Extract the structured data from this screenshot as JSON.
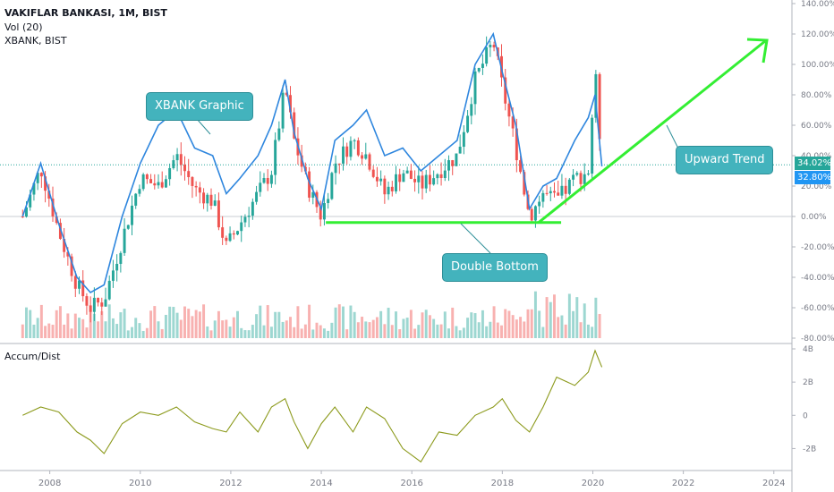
{
  "header": {
    "symbol_line": "VAKIFLAR BANKASI, 1M, BIST",
    "volume_line": "Vol (20)",
    "compare_line": "XBANK, BIST",
    "indicator_label": "Accum/Dist"
  },
  "callouts": {
    "xbank": "XBANK Graphic",
    "upward": "Upward Trend",
    "double_bottom": "Double Bottom"
  },
  "price_tags": {
    "vakbn": "34.02%",
    "xbank": "32.80%"
  },
  "colors": {
    "up": "#26a69a",
    "down": "#ef5350",
    "xbank_line": "#2e86de",
    "trend": "#33ee33",
    "ad_line": "#8c9a1c",
    "tag_green": "#26a69a",
    "tag_blue": "#2196f3",
    "callout": "#43b3bd"
  },
  "chart_data": [
    {
      "type": "candlestick+line",
      "scale": "percent",
      "ylim": [
        -80,
        140
      ],
      "yticks": [
        "140.00%",
        "120.00%",
        "100.00%",
        "80.00%",
        "60.00%",
        "40.00%",
        "20.00%",
        "0.00%",
        "-20.00%",
        "-40.00%",
        "-60.00%",
        "-80.00%"
      ],
      "ytick_values": [
        140,
        120,
        100,
        80,
        60,
        40,
        20,
        0,
        -20,
        -40,
        -60,
        -80
      ],
      "xticks": [
        "2008",
        "2010",
        "2012",
        "2014",
        "2016",
        "2018",
        "2020",
        "2022",
        "2024"
      ],
      "xtick_values": [
        2008,
        2010,
        2012,
        2014,
        2016,
        2018,
        2020,
        2022,
        2024
      ],
      "xlim": [
        2006.9,
        2024.4
      ],
      "series": [
        {
          "name": "VAKIFLAR BANKASI",
          "x": [
            2007.4,
            2007.8,
            2008.2,
            2008.6,
            2008.9,
            2009.2,
            2009.6,
            2010.0,
            2010.4,
            2010.8,
            2011.2,
            2011.6,
            2011.9,
            2012.2,
            2012.6,
            2012.9,
            2013.2,
            2013.4,
            2013.7,
            2014.0,
            2014.3,
            2014.7,
            2015.0,
            2015.4,
            2015.8,
            2016.2,
            2016.6,
            2017.0,
            2017.4,
            2017.8,
            2018.0,
            2018.3,
            2018.6,
            2018.9,
            2019.2,
            2019.6,
            2019.9,
            2020.05,
            2020.2
          ],
          "y": [
            0,
            32,
            -10,
            -45,
            -60,
            -55,
            -15,
            25,
            20,
            40,
            18,
            10,
            -20,
            -5,
            15,
            30,
            85,
            50,
            20,
            0,
            35,
            50,
            40,
            15,
            30,
            20,
            30,
            40,
            90,
            115,
            85,
            45,
            0,
            15,
            10,
            25,
            30,
            95,
            34
          ]
        },
        {
          "name": "XBANK",
          "x": [
            2007.4,
            2007.8,
            2008.2,
            2008.6,
            2008.9,
            2009.2,
            2009.6,
            2010.0,
            2010.4,
            2010.8,
            2011.2,
            2011.6,
            2011.9,
            2012.2,
            2012.6,
            2012.9,
            2013.2,
            2013.4,
            2013.7,
            2014.0,
            2014.3,
            2014.7,
            2015.0,
            2015.4,
            2015.8,
            2016.2,
            2016.6,
            2017.0,
            2017.4,
            2017.8,
            2018.0,
            2018.3,
            2018.6,
            2018.9,
            2019.2,
            2019.6,
            2019.9,
            2020.05,
            2020.2
          ],
          "y": [
            0,
            35,
            -5,
            -40,
            -50,
            -45,
            0,
            35,
            60,
            70,
            45,
            40,
            15,
            25,
            40,
            60,
            90,
            55,
            25,
            5,
            50,
            60,
            70,
            40,
            45,
            30,
            40,
            50,
            100,
            120,
            95,
            60,
            5,
            20,
            25,
            50,
            65,
            80,
            33
          ]
        }
      ],
      "annotations": [
        "XBANK Graphic",
        "Upward Trend",
        "Double Bottom"
      ]
    },
    {
      "type": "line",
      "name": "Accum/Dist",
      "ylim": [
        -3,
        4
      ],
      "yticks": [
        "4B",
        "2B",
        "0",
        "-2B"
      ],
      "ytick_values": [
        4,
        2,
        0,
        -2
      ],
      "x": [
        2007.4,
        2007.8,
        2008.2,
        2008.6,
        2008.9,
        2009.2,
        2009.6,
        2010.0,
        2010.4,
        2010.8,
        2011.2,
        2011.6,
        2011.9,
        2012.2,
        2012.6,
        2012.9,
        2013.2,
        2013.4,
        2013.7,
        2014.0,
        2014.3,
        2014.7,
        2015.0,
        2015.4,
        2015.8,
        2016.2,
        2016.6,
        2017.0,
        2017.4,
        2017.8,
        2018.0,
        2018.3,
        2018.6,
        2018.9,
        2019.2,
        2019.6,
        2019.9,
        2020.05,
        2020.2
      ],
      "y": [
        0,
        0.5,
        0.2,
        -1.0,
        -1.5,
        -2.3,
        -0.5,
        0.2,
        0,
        0.5,
        -0.4,
        -0.8,
        -1.0,
        0.2,
        -1.0,
        0.5,
        1.0,
        -0.4,
        -2.0,
        -0.5,
        0.5,
        -1.0,
        0.5,
        -0.2,
        -2.0,
        -2.8,
        -1.0,
        -1.2,
        0,
        0.5,
        1.0,
        -0.3,
        -1.0,
        0.5,
        2.3,
        1.8,
        2.6,
        3.9,
        2.9
      ]
    }
  ]
}
